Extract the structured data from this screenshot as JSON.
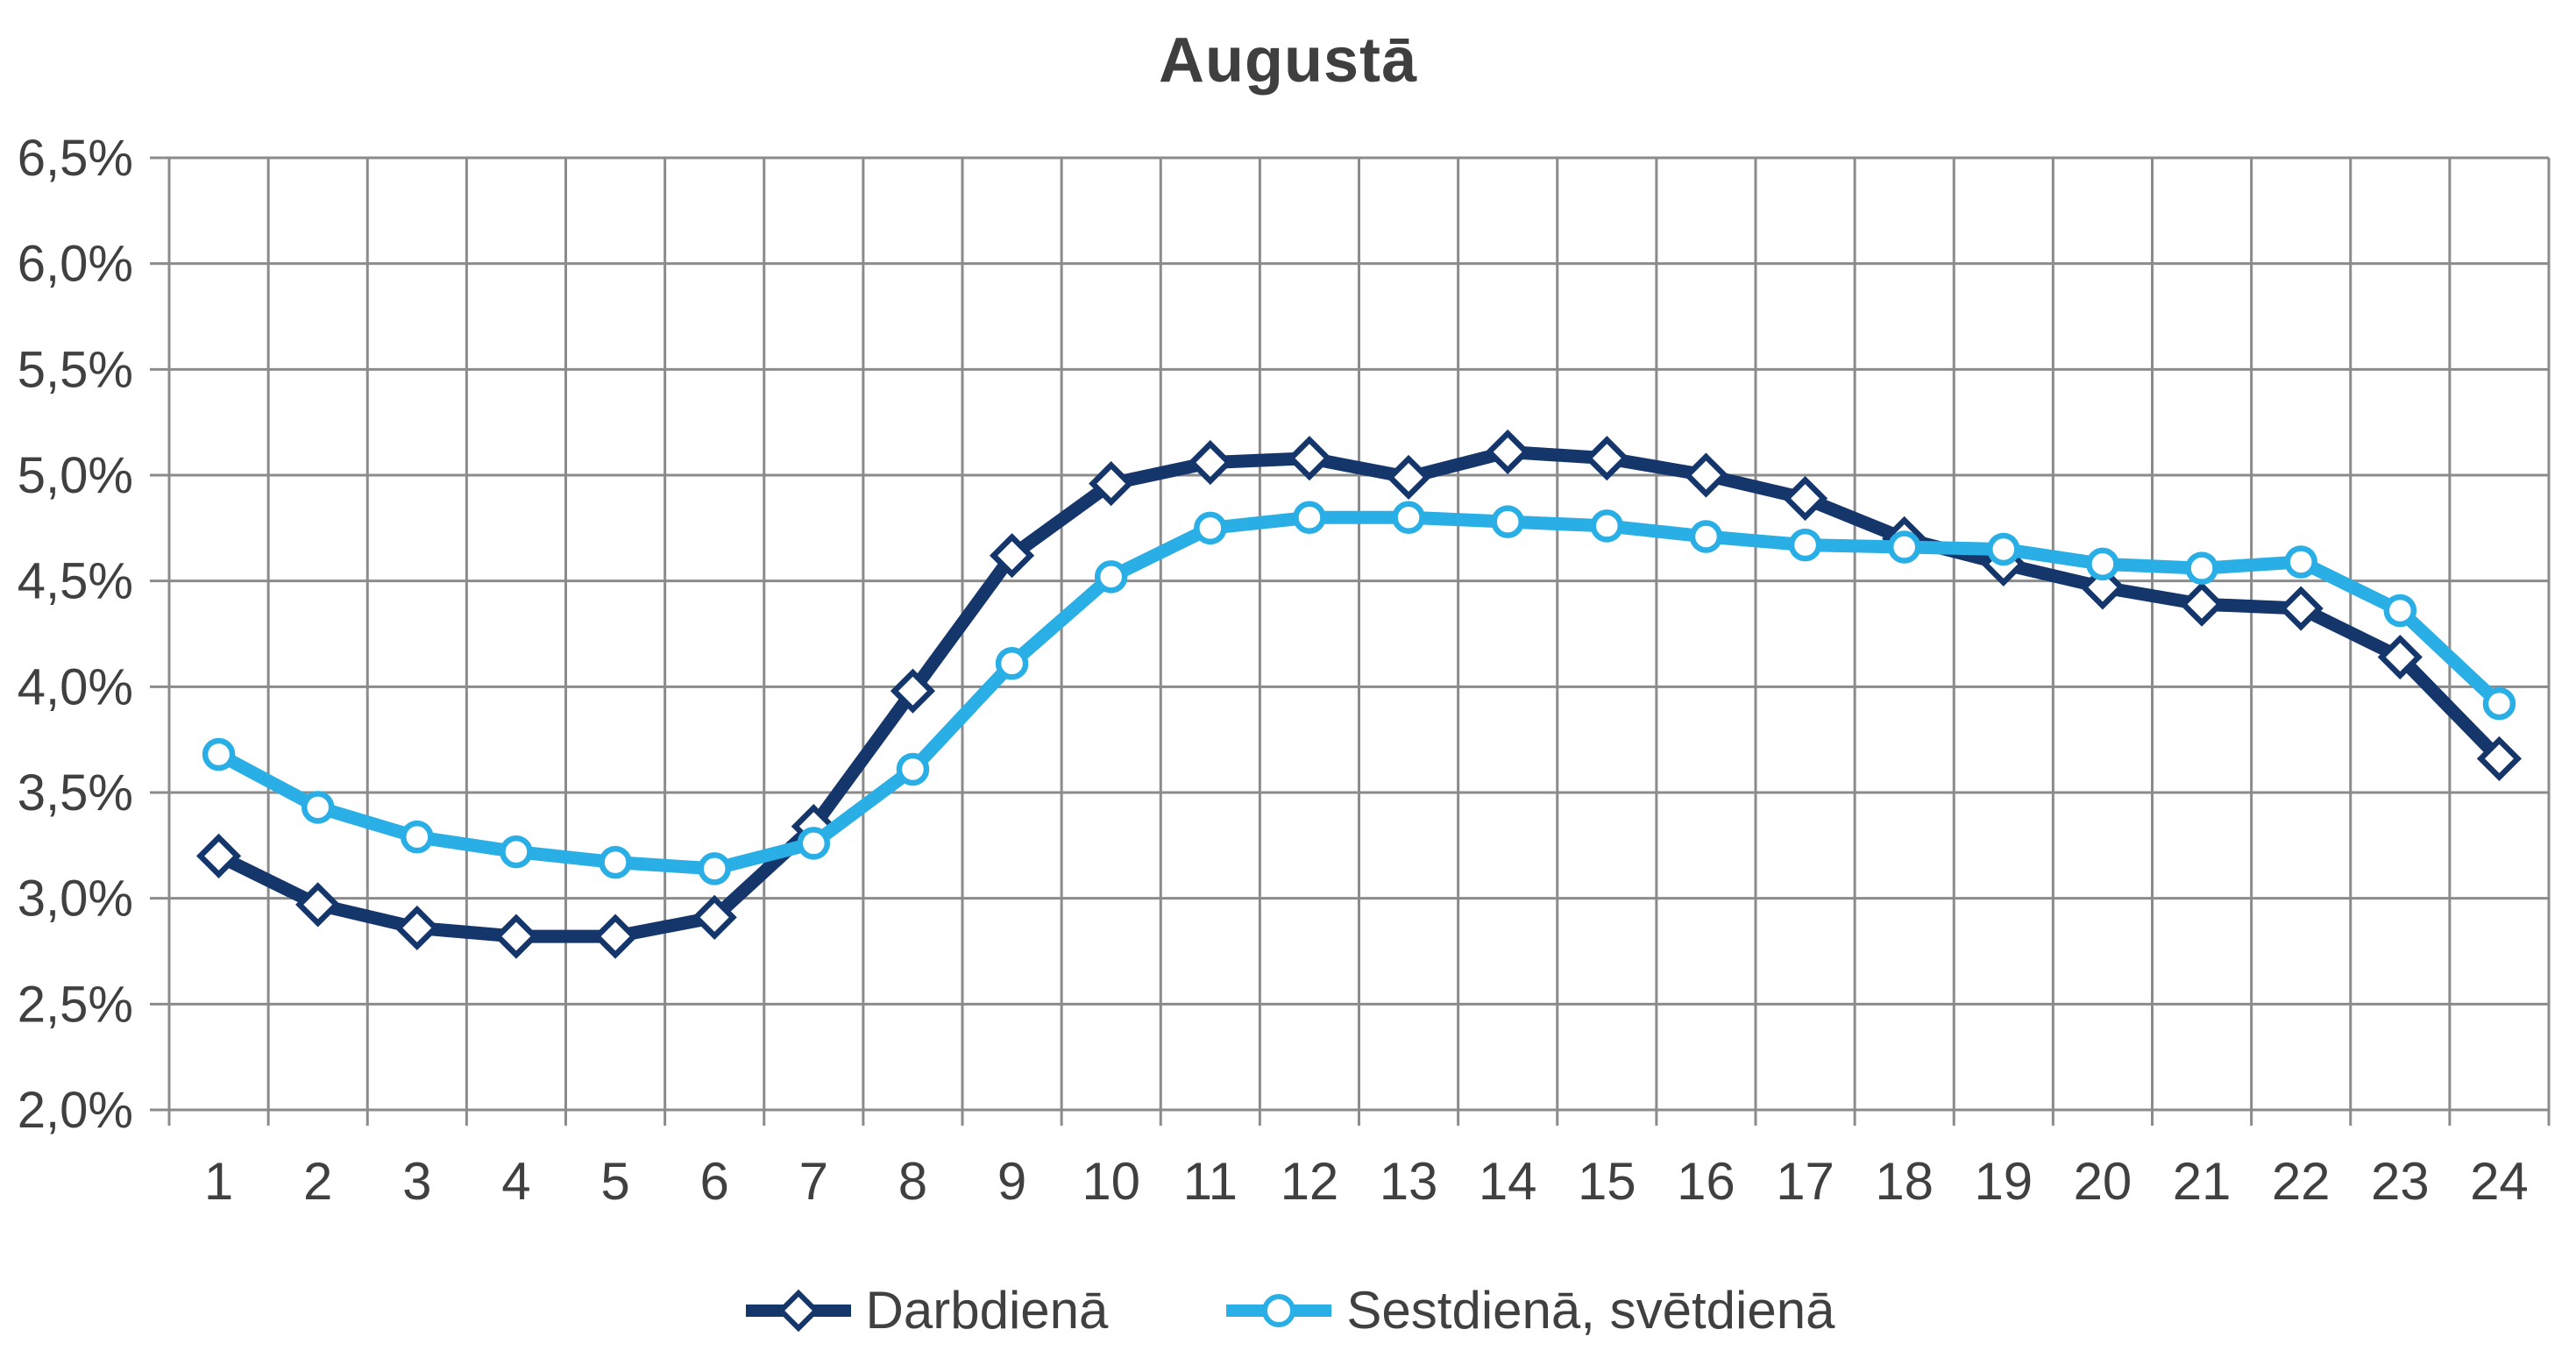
{
  "chart": {
    "title": "Augustā"
  },
  "legend": {
    "items": [
      {
        "label": "Darbdienā",
        "marker": "diamond"
      },
      {
        "label": "Sestdienā, svētdienā",
        "marker": "circle"
      }
    ]
  },
  "colors": {
    "series_darbdiena": "#15366B",
    "series_sestdiena": "#29AEE5",
    "grid": "#8B8B8B",
    "axis_text": "#404040",
    "title_text": "#3F3F3F",
    "marker_fill": "#FFFFFF"
  },
  "chart_data": {
    "type": "line",
    "title": "Augustā",
    "xlabel": "",
    "ylabel": "",
    "categories": [
      "1",
      "2",
      "3",
      "4",
      "5",
      "6",
      "7",
      "8",
      "9",
      "10",
      "11",
      "12",
      "13",
      "14",
      "15",
      "16",
      "17",
      "18",
      "19",
      "20",
      "21",
      "22",
      "23",
      "24"
    ],
    "series": [
      {
        "name": "Darbdienā",
        "marker": "diamond",
        "color": "#15366B",
        "values": [
          3.2,
          2.97,
          2.86,
          2.82,
          2.82,
          2.91,
          3.34,
          3.98,
          4.62,
          4.96,
          5.06,
          5.08,
          4.99,
          5.11,
          5.08,
          5.0,
          4.89,
          4.7,
          4.58,
          4.47,
          4.39,
          4.37,
          4.14,
          3.66
        ]
      },
      {
        "name": "Sestdienā, svētdienā",
        "marker": "circle",
        "color": "#29AEE5",
        "values": [
          3.68,
          3.43,
          3.29,
          3.22,
          3.17,
          3.14,
          3.26,
          3.61,
          4.11,
          4.52,
          4.75,
          4.8,
          4.8,
          4.78,
          4.76,
          4.71,
          4.67,
          4.66,
          4.65,
          4.58,
          4.56,
          4.59,
          4.36,
          3.92
        ]
      }
    ],
    "ylim": [
      2.0,
      6.5
    ],
    "y_tick_step": 0.5,
    "y_tick_labels": [
      "6,5%",
      "6,0%",
      "5,5%",
      "5,0%",
      "4,5%",
      "4,0%",
      "3,5%",
      "3,0%",
      "2,5%",
      "2,0%"
    ],
    "grid": true,
    "legend_position": "bottom"
  }
}
